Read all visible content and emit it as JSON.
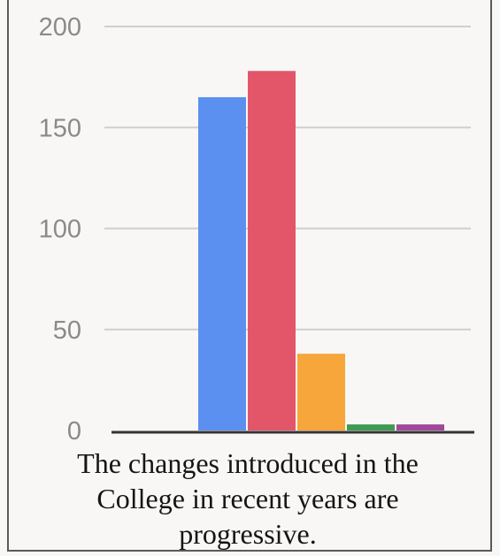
{
  "chart_data": {
    "type": "bar",
    "categories": [
      "",
      "",
      "",
      "",
      ""
    ],
    "values": [
      165,
      178,
      38,
      3,
      3
    ],
    "colors": [
      "#5b8ff0",
      "#e3566a",
      "#f6a63a",
      "#3f9a52",
      "#a0489a"
    ],
    "ylim": [
      0,
      200
    ],
    "yticks": [
      "200",
      "150",
      "100",
      "50",
      "0"
    ],
    "grid": true,
    "legend": "none",
    "title": "",
    "xlabel": "The changes introduced in the College in recent years are progressive.",
    "ylabel": ""
  },
  "colors": {
    "gridline": "#cfcfcf",
    "axis": "#333333",
    "tick_text": "#8a8a8a"
  }
}
